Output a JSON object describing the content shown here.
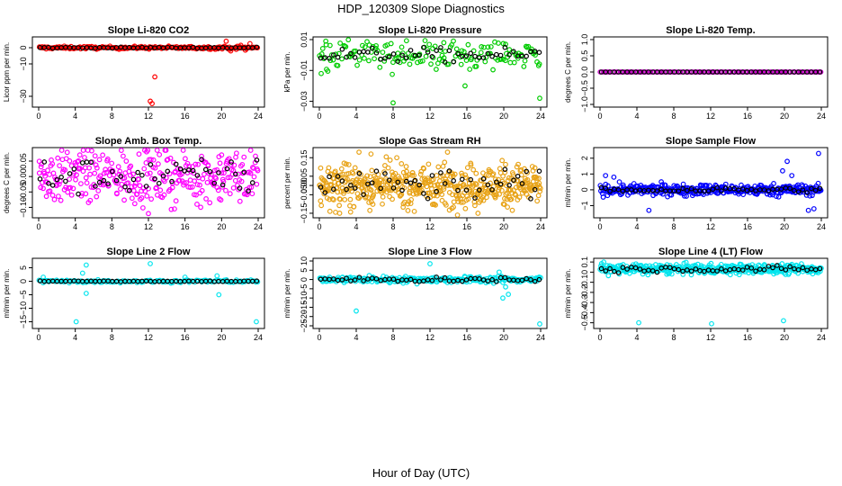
{
  "figure": {
    "title": "HDP_120309  Slope Diagnostics",
    "xlabel": "Hour of Day (UTC)"
  },
  "chart_data": [
    {
      "type": "scatter",
      "title": "Slope Li-820 CO2",
      "ylabel": "Licor ppm per min.",
      "xlim": [
        0,
        24
      ],
      "ylim": [
        -35,
        5
      ],
      "xticks": [
        0,
        4,
        8,
        12,
        16,
        20,
        24
      ],
      "yticks": [
        {
          "v": 0,
          "label": "0"
        },
        {
          "v": -10,
          "label": "−10"
        },
        {
          "v": -30,
          "label": "−30"
        }
      ],
      "color": "#ff0000",
      "base": 0,
      "spread": 0.6,
      "dense": 200,
      "outliers": [
        [
          12.2,
          -33
        ],
        [
          12.4,
          -34.5
        ],
        [
          12.7,
          -18
        ],
        [
          20.5,
          4
        ],
        [
          18.8,
          -1
        ],
        [
          21,
          -2
        ],
        [
          22.1,
          1.5
        ],
        [
          23.1,
          2.5
        ],
        [
          22.6,
          -1.5
        ],
        [
          21.6,
          -1
        ]
      ],
      "black_spread": 0.3
    },
    {
      "type": "scatter",
      "title": "Slope Li-820 Pressure",
      "ylabel": "kPa per min.",
      "xlim": [
        0,
        24
      ],
      "ylim": [
        -0.032,
        0.01
      ],
      "xticks": [
        0,
        4,
        8,
        12,
        16,
        20,
        24
      ],
      "yticks": [
        {
          "v": 0.01,
          "label": "0.01"
        },
        {
          "v": -0.01,
          "label": "−0.01"
        },
        {
          "v": -0.03,
          "label": "−0.03"
        }
      ],
      "color": "#00cc00",
      "base": 0,
      "spread": 0.007,
      "dense": 160,
      "outliers": [
        [
          8,
          -0.031
        ],
        [
          15.8,
          -0.02
        ],
        [
          0.2,
          -0.012
        ],
        [
          23.9,
          -0.028
        ],
        [
          0.7,
          0.009
        ],
        [
          13.5,
          0.008
        ],
        [
          20.2,
          0.007
        ]
      ],
      "black_spread": 0.004
    },
    {
      "type": "scatter",
      "title": "Slope Li-820 Temp.",
      "ylabel": "degrees C per min.",
      "xlim": [
        0,
        24
      ],
      "ylim": [
        -1,
        1
      ],
      "xticks": [
        0,
        4,
        8,
        12,
        16,
        20,
        24
      ],
      "yticks": [
        {
          "v": 1,
          "label": "1.0"
        },
        {
          "v": 0.5,
          "label": "0.5"
        },
        {
          "v": 0,
          "label": "0.0"
        },
        {
          "v": -0.5,
          "label": "−0.5"
        },
        {
          "v": -1,
          "label": "−1.0"
        }
      ],
      "color": "#cc00cc",
      "base": 0,
      "spread": 0,
      "dense": 140,
      "outliers": [],
      "black_spread": 0
    },
    {
      "type": "scatter",
      "title": "Slope Amb. Box Temp.",
      "ylabel": "degrees C per min.",
      "xlim": [
        0,
        24
      ],
      "ylim": [
        -0.125,
        0.085
      ],
      "xticks": [
        0,
        4,
        8,
        12,
        16,
        20,
        24
      ],
      "yticks": [
        {
          "v": 0.05,
          "label": "0.05"
        },
        {
          "v": 0,
          "label": "0.00"
        },
        {
          "v": -0.05,
          "label": "−0.05"
        },
        {
          "v": -0.1,
          "label": "−0.10"
        }
      ],
      "color": "#ff00ff",
      "base": 0,
      "spread": 0.06,
      "dense": 320,
      "outliers": [
        [
          12,
          -0.12
        ],
        [
          11.8,
          0.08
        ],
        [
          4.5,
          0.07
        ],
        [
          20,
          0.07
        ]
      ],
      "black_spread": 0.05
    },
    {
      "type": "scatter",
      "title": "Slope Gas Stream RH",
      "ylabel": "percent per min.",
      "xlim": [
        0,
        24
      ],
      "ylim": [
        -0.16,
        0.19
      ],
      "xticks": [
        0,
        4,
        8,
        12,
        16,
        20,
        24
      ],
      "yticks": [
        {
          "v": 0.15,
          "label": "0.15"
        },
        {
          "v": 0.05,
          "label": "0.05"
        },
        {
          "v": 0,
          "label": "0.00"
        },
        {
          "v": -0.05,
          "label": "−0.05"
        },
        {
          "v": -0.15,
          "label": "−0.15"
        }
      ],
      "color": "#e8a317",
      "base": 0,
      "spread": 0.08,
      "dense": 520,
      "outliers": [
        [
          4.3,
          0.18
        ],
        [
          5.6,
          0.17
        ],
        [
          13.9,
          0.18
        ],
        [
          17.2,
          -0.15
        ],
        [
          2.2,
          -0.15
        ],
        [
          10.3,
          -0.14
        ]
      ],
      "black_spread": 0.07
    },
    {
      "type": "scatter",
      "title": "Slope Sample Flow",
      "ylabel": "ml/min per min.",
      "xlim": [
        0,
        24
      ],
      "ylim": [
        -1.6,
        2.5
      ],
      "xticks": [
        0,
        4,
        8,
        12,
        16,
        20,
        24
      ],
      "yticks": [
        {
          "v": 2,
          "label": "2"
        },
        {
          "v": 1,
          "label": "1"
        },
        {
          "v": 0,
          "label": "0"
        },
        {
          "v": -1,
          "label": "−1"
        }
      ],
      "color": "#0000ff",
      "base": 0,
      "spread": 0.25,
      "dense": 360,
      "outliers": [
        [
          5.3,
          -1.3
        ],
        [
          23.7,
          2.3
        ],
        [
          20.3,
          1.8
        ],
        [
          19.8,
          1.2
        ],
        [
          23.2,
          -1.2
        ],
        [
          22.6,
          -1.3
        ],
        [
          0.6,
          0.9
        ],
        [
          1.5,
          0.8
        ],
        [
          20.8,
          0.9
        ]
      ],
      "black_spread": 0.15
    },
    {
      "type": "scatter",
      "title": "Slope Line 2 Flow",
      "ylabel": "ml/min per min.",
      "xlim": [
        0,
        24
      ],
      "ylim": [
        -16.5,
        7.5
      ],
      "xticks": [
        0,
        4,
        8,
        12,
        16,
        20,
        24
      ],
      "yticks": [
        {
          "v": 5,
          "label": "5"
        },
        {
          "v": 0,
          "label": "0"
        },
        {
          "v": -5,
          "label": "−5"
        },
        {
          "v": -10,
          "label": "−10"
        },
        {
          "v": -15,
          "label": "−15"
        }
      ],
      "color": "#00e5ee",
      "base": 0,
      "spread": 0.4,
      "dense": 150,
      "outliers": [
        [
          4.1,
          -15
        ],
        [
          5.2,
          6
        ],
        [
          5.2,
          -4.5
        ],
        [
          4.8,
          3
        ],
        [
          12.2,
          6.5
        ],
        [
          19.7,
          -5
        ],
        [
          23.8,
          -15
        ],
        [
          19.5,
          2
        ],
        [
          0.5,
          1.5
        ],
        [
          16,
          1.5
        ]
      ],
      "black_spread": 0.1
    },
    {
      "type": "scatter",
      "title": "Slope Line 3 Flow",
      "ylabel": "ml/min per min.",
      "xlim": [
        0,
        24
      ],
      "ylim": [
        -25,
        10
      ],
      "xticks": [
        0,
        4,
        8,
        12,
        16,
        20,
        24
      ],
      "yticks": [
        {
          "v": 10,
          "label": "10"
        },
        {
          "v": 5,
          "label": "5"
        },
        {
          "v": 0,
          "label": "0"
        },
        {
          "v": -5,
          "label": "−5"
        },
        {
          "v": -10,
          "label": "−10"
        },
        {
          "v": -15,
          "label": "−15"
        },
        {
          "v": -20,
          "label": "−20"
        },
        {
          "v": -25,
          "label": "−25"
        }
      ],
      "color": "#00e5ee",
      "base": 0,
      "spread": 1.2,
      "dense": 260,
      "outliers": [
        [
          4,
          -17
        ],
        [
          12,
          8.5
        ],
        [
          23.9,
          -24
        ],
        [
          19.5,
          4
        ],
        [
          20.2,
          -4
        ],
        [
          20.5,
          -8
        ],
        [
          19.9,
          -10
        ]
      ],
      "black_spread": 1.2
    },
    {
      "type": "scatter",
      "title": "Slope Line 4 (LT) Flow",
      "ylabel": "ml/min per min.",
      "xlim": [
        0,
        24
      ],
      "ylim": [
        -0.53,
        0.11
      ],
      "xticks": [
        0,
        4,
        8,
        12,
        16,
        20,
        24
      ],
      "yticks": [
        {
          "v": 0.1,
          "label": "0.1"
        },
        {
          "v": 0,
          "label": "0"
        },
        {
          "v": -0.1,
          "label": "−0.1"
        },
        {
          "v": -0.2,
          "label": "−0.2"
        },
        {
          "v": -0.3,
          "label": "−0.3"
        },
        {
          "v": -0.4,
          "label": "−0.4"
        },
        {
          "v": -0.5,
          "label": "−0.5"
        }
      ],
      "color": "#00e5ee",
      "base": 0.03,
      "spread": 0.035,
      "dense": 400,
      "outliers": [
        [
          4.2,
          -0.5
        ],
        [
          12.1,
          -0.51
        ],
        [
          19.9,
          -0.48
        ],
        [
          0.4,
          0.1
        ]
      ],
      "black_spread": 0.025
    }
  ]
}
